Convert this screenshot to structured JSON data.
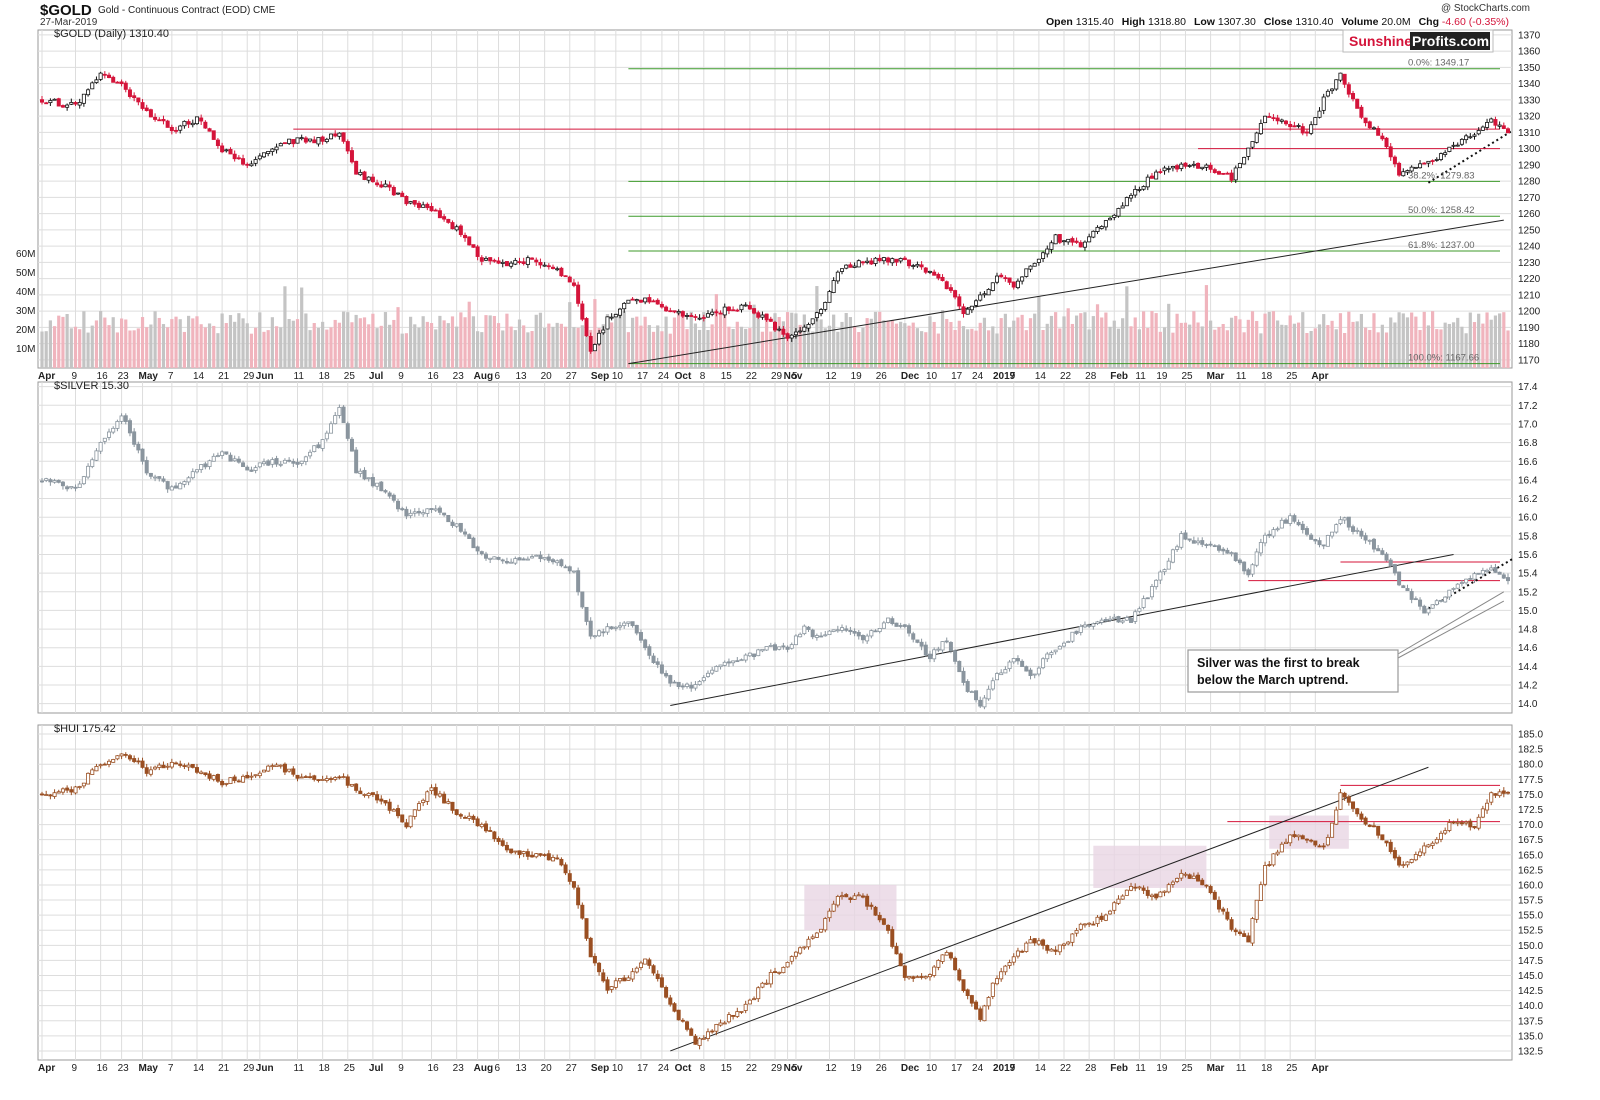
{
  "header": {
    "symbol": "$GOLD",
    "subtitle": "Gold - Continuous Contract (EOD)  CME",
    "date": "27-Mar-2019",
    "copyright": "@ StockCharts.com",
    "ohlc": [
      {
        "label": "Open",
        "value": "1315.40"
      },
      {
        "label": "High",
        "value": "1318.80"
      },
      {
        "label": "Low",
        "value": "1307.30"
      },
      {
        "label": "Close",
        "value": "1310.40"
      },
      {
        "label": "Volume",
        "value": "20.0M"
      },
      {
        "label": "Chg",
        "value": "-4.60 (-0.35%)"
      }
    ]
  },
  "logo": {
    "part1": "Sunshine",
    "part2": "Profits.com",
    "color1": "#d4143a",
    "color2": "#ffffff"
  },
  "colors": {
    "grid": "#dddddd",
    "up_gold": "#111111",
    "down_gold": "#d4143a",
    "silver": "#8a959e",
    "hui": "#9a4f22",
    "resist": "#d4143a",
    "fib": "#3c9a2a",
    "trend": "#222222",
    "vol_up": "#c4c4c4",
    "vol_down": "#f0b4bd",
    "zone": "#e9d6e3"
  },
  "chart_data": [
    {
      "type": "candlestick",
      "panel": "gold",
      "label": "$GOLD (Daily) 1310.40",
      "x_labels": [
        "Apr",
        "9",
        "16",
        "23",
        "May",
        "7",
        "14",
        "21",
        "29",
        "Jun",
        "11",
        "18",
        "25",
        "Jul",
        "9",
        "16",
        "23",
        "Aug",
        "6",
        "13",
        "20",
        "27",
        "Sep",
        "10",
        "17",
        "24",
        "Oct",
        "8",
        "15",
        "22",
        "29",
        "Nov",
        "5",
        "12",
        "19",
        "26",
        "Dec",
        "10",
        "17",
        "24",
        "2019",
        "7",
        "14",
        "22",
        "28",
        "Feb",
        "11",
        "19",
        "25",
        "Mar",
        "11",
        "18",
        "25",
        "Apr"
      ],
      "y_ticks": [
        1170,
        1180,
        1190,
        1200,
        1210,
        1220,
        1230,
        1240,
        1250,
        1260,
        1270,
        1280,
        1290,
        1300,
        1310,
        1320,
        1330,
        1340,
        1350,
        1360,
        1370
      ],
      "ylim": [
        1165,
        1373
      ],
      "path_points": [
        [
          0,
          1330
        ],
        [
          8,
          1326
        ],
        [
          14,
          1345
        ],
        [
          19,
          1338
        ],
        [
          25,
          1322
        ],
        [
          31,
          1312
        ],
        [
          37,
          1318
        ],
        [
          43,
          1300
        ],
        [
          49,
          1290
        ],
        [
          55,
          1300
        ],
        [
          61,
          1306
        ],
        [
          67,
          1305
        ],
        [
          71,
          1310
        ],
        [
          75,
          1285
        ],
        [
          81,
          1278
        ],
        [
          87,
          1268
        ],
        [
          93,
          1262
        ],
        [
          99,
          1250
        ],
        [
          105,
          1232
        ],
        [
          111,
          1228
        ],
        [
          117,
          1232
        ],
        [
          123,
          1225
        ],
        [
          127,
          1215
        ],
        [
          131,
          1175
        ],
        [
          135,
          1195
        ],
        [
          140,
          1205
        ],
        [
          144,
          1208
        ],
        [
          150,
          1200
        ],
        [
          156,
          1195
        ],
        [
          162,
          1200
        ],
        [
          168,
          1203
        ],
        [
          174,
          1192
        ],
        [
          178,
          1182
        ],
        [
          182,
          1190
        ],
        [
          186,
          1200
        ],
        [
          190,
          1225
        ],
        [
          196,
          1230
        ],
        [
          202,
          1232
        ],
        [
          206,
          1230
        ],
        [
          212,
          1225
        ],
        [
          216,
          1215
        ],
        [
          220,
          1200
        ],
        [
          224,
          1208
        ],
        [
          228,
          1222
        ],
        [
          232,
          1215
        ],
        [
          236,
          1228
        ],
        [
          242,
          1245
        ],
        [
          248,
          1240
        ],
        [
          254,
          1255
        ],
        [
          260,
          1272
        ],
        [
          266,
          1285
        ],
        [
          272,
          1290
        ],
        [
          278,
          1288
        ],
        [
          284,
          1282
        ],
        [
          288,
          1300
        ],
        [
          292,
          1320
        ],
        [
          298,
          1315
        ],
        [
          302,
          1310
        ],
        [
          306,
          1330
        ],
        [
          310,
          1345
        ],
        [
          315,
          1320
        ],
        [
          320,
          1305
        ],
        [
          324,
          1285
        ],
        [
          330,
          1290
        ],
        [
          336,
          1300
        ],
        [
          342,
          1310
        ],
        [
          346,
          1318
        ],
        [
          350,
          1310
        ]
      ],
      "fib_levels": [
        {
          "label": "0.0%: 1349.17",
          "value": 1349.17
        },
        {
          "label": "38.2%: 1279.83",
          "value": 1279.83
        },
        {
          "label": "50.0%: 1258.42",
          "value": 1258.42
        },
        {
          "label": "61.8%: 1237.00",
          "value": 1237.0
        },
        {
          "label": "100.0%: 1167.66",
          "value": 1167.66
        }
      ],
      "resistance": [
        1312,
        1300
      ],
      "volume_ticks": [
        "10M",
        "20M",
        "30M",
        "40M",
        "50M",
        "60M"
      ],
      "volume": [
        {
          "label": "10M",
          "value": 10
        },
        {
          "label": "20M",
          "value": 20
        },
        {
          "label": "30M",
          "value": 30
        },
        {
          "label": "40M",
          "value": 40
        },
        {
          "label": "50M",
          "value": 50
        },
        {
          "label": "60M",
          "value": 60
        }
      ]
    },
    {
      "type": "candlestick",
      "panel": "silver",
      "label": "$SILVER 15.30",
      "y_ticks": [
        14.0,
        14.2,
        14.4,
        14.6,
        14.8,
        15.0,
        15.2,
        15.4,
        15.6,
        15.8,
        16.0,
        16.2,
        16.4,
        16.6,
        16.8,
        17.0,
        17.2,
        17.4
      ],
      "ylim": [
        13.9,
        17.45
      ],
      "path_points": [
        [
          0,
          16.4
        ],
        [
          8,
          16.3
        ],
        [
          14,
          16.8
        ],
        [
          19,
          17.1
        ],
        [
          25,
          16.5
        ],
        [
          31,
          16.3
        ],
        [
          37,
          16.5
        ],
        [
          43,
          16.7
        ],
        [
          49,
          16.5
        ],
        [
          55,
          16.6
        ],
        [
          61,
          16.6
        ],
        [
          67,
          16.8
        ],
        [
          71,
          17.2
        ],
        [
          75,
          16.5
        ],
        [
          81,
          16.3
        ],
        [
          87,
          16.0
        ],
        [
          93,
          16.1
        ],
        [
          99,
          15.9
        ],
        [
          105,
          15.6
        ],
        [
          111,
          15.5
        ],
        [
          117,
          15.6
        ],
        [
          123,
          15.5
        ],
        [
          127,
          15.4
        ],
        [
          131,
          14.7
        ],
        [
          135,
          14.8
        ],
        [
          140,
          14.9
        ],
        [
          144,
          14.6
        ],
        [
          150,
          14.2
        ],
        [
          156,
          14.2
        ],
        [
          162,
          14.4
        ],
        [
          168,
          14.5
        ],
        [
          174,
          14.6
        ],
        [
          178,
          14.6
        ],
        [
          182,
          14.8
        ],
        [
          186,
          14.7
        ],
        [
          190,
          14.8
        ],
        [
          196,
          14.7
        ],
        [
          202,
          14.9
        ],
        [
          206,
          14.8
        ],
        [
          212,
          14.5
        ],
        [
          216,
          14.7
        ],
        [
          220,
          14.2
        ],
        [
          224,
          14.0
        ],
        [
          228,
          14.3
        ],
        [
          232,
          14.5
        ],
        [
          236,
          14.3
        ],
        [
          242,
          14.6
        ],
        [
          248,
          14.8
        ],
        [
          254,
          14.9
        ],
        [
          260,
          14.9
        ],
        [
          266,
          15.3
        ],
        [
          272,
          15.8
        ],
        [
          278,
          15.7
        ],
        [
          284,
          15.6
        ],
        [
          288,
          15.4
        ],
        [
          292,
          15.8
        ],
        [
          298,
          16.0
        ],
        [
          302,
          15.8
        ],
        [
          306,
          15.7
        ],
        [
          310,
          16.0
        ],
        [
          315,
          15.8
        ],
        [
          320,
          15.6
        ],
        [
          324,
          15.3
        ],
        [
          330,
          15.0
        ],
        [
          336,
          15.2
        ],
        [
          342,
          15.4
        ],
        [
          346,
          15.45
        ],
        [
          350,
          15.3
        ]
      ],
      "resistance": [
        15.52,
        15.32
      ],
      "annotation": [
        "Silver was the first to break",
        "below the March uptrend."
      ]
    },
    {
      "type": "candlestick",
      "panel": "hui",
      "label": "$HUI 175.42",
      "x_labels": [
        "Apr",
        "9",
        "16",
        "23",
        "May",
        "7",
        "14",
        "21",
        "29",
        "Jun",
        "11",
        "18",
        "25",
        "Jul",
        "9",
        "16",
        "23",
        "Aug",
        "6",
        "13",
        "20",
        "27",
        "Sep",
        "10",
        "17",
        "24",
        "Oct",
        "8",
        "15",
        "22",
        "29",
        "Nov",
        "5",
        "12",
        "19",
        "26",
        "Dec",
        "10",
        "17",
        "24",
        "2019",
        "7",
        "14",
        "22",
        "28",
        "Feb",
        "11",
        "19",
        "25",
        "Mar",
        "11",
        "18",
        "25",
        "Apr"
      ],
      "y_ticks": [
        132.5,
        135.0,
        137.5,
        140.0,
        142.5,
        145.0,
        147.5,
        150.0,
        152.5,
        155.0,
        157.5,
        160.0,
        162.5,
        165.0,
        167.5,
        170.0,
        172.5,
        175.0,
        177.5,
        180.0,
        182.5,
        185.0
      ],
      "ylim": [
        131.0,
        186.5
      ],
      "path_points": [
        [
          0,
          175
        ],
        [
          8,
          176
        ],
        [
          14,
          180
        ],
        [
          19,
          182
        ],
        [
          25,
          179
        ],
        [
          31,
          180
        ],
        [
          37,
          179
        ],
        [
          43,
          177
        ],
        [
          49,
          178
        ],
        [
          55,
          180
        ],
        [
          61,
          178
        ],
        [
          67,
          177
        ],
        [
          71,
          178
        ],
        [
          75,
          176
        ],
        [
          81,
          174
        ],
        [
          87,
          170
        ],
        [
          93,
          176
        ],
        [
          99,
          172
        ],
        [
          105,
          170
        ],
        [
          111,
          166
        ],
        [
          117,
          165
        ],
        [
          123,
          164
        ],
        [
          127,
          160
        ],
        [
          131,
          148
        ],
        [
          135,
          143
        ],
        [
          140,
          145
        ],
        [
          144,
          148
        ],
        [
          150,
          140
        ],
        [
          156,
          134
        ],
        [
          162,
          137
        ],
        [
          168,
          140
        ],
        [
          174,
          145
        ],
        [
          178,
          147
        ],
        [
          182,
          150
        ],
        [
          186,
          153
        ],
        [
          190,
          158
        ],
        [
          196,
          158
        ],
        [
          202,
          152
        ],
        [
          206,
          145
        ],
        [
          212,
          145
        ],
        [
          216,
          149
        ],
        [
          220,
          143
        ],
        [
          224,
          138
        ],
        [
          228,
          145
        ],
        [
          232,
          148
        ],
        [
          236,
          151
        ],
        [
          242,
          149
        ],
        [
          248,
          153
        ],
        [
          254,
          155
        ],
        [
          260,
          160
        ],
        [
          266,
          158
        ],
        [
          272,
          162
        ],
        [
          278,
          160
        ],
        [
          284,
          153
        ],
        [
          288,
          151
        ],
        [
          292,
          163
        ],
        [
          298,
          168
        ],
        [
          302,
          168
        ],
        [
          306,
          166
        ],
        [
          310,
          175
        ],
        [
          315,
          171
        ],
        [
          320,
          168
        ],
        [
          324,
          163
        ],
        [
          330,
          166
        ],
        [
          336,
          170
        ],
        [
          342,
          170
        ],
        [
          346,
          175
        ],
        [
          350,
          175.4
        ]
      ],
      "resistance": [
        176.5,
        170.5
      ],
      "zones": [
        {
          "x0": 182,
          "x1": 204,
          "y0": 152.5,
          "y1": 160.0
        },
        {
          "x0": 251,
          "x1": 278,
          "y0": 159.5,
          "y1": 166.5
        },
        {
          "x0": 293,
          "x1": 312,
          "y0": 166.0,
          "y1": 171.5
        }
      ]
    }
  ]
}
